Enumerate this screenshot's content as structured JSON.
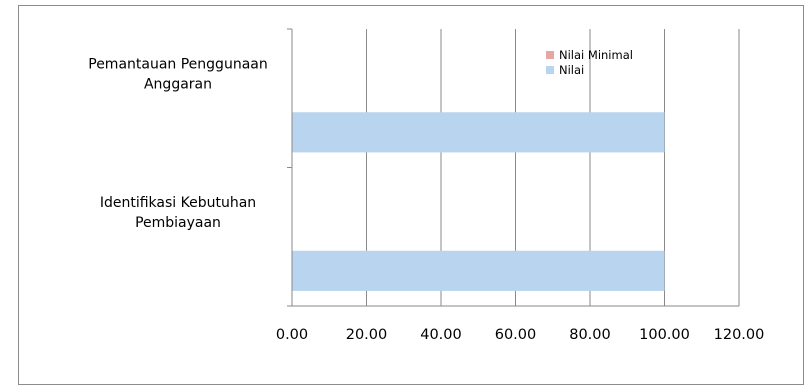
{
  "chart_data": {
    "type": "bar",
    "orientation": "horizontal",
    "categories": [
      "Identifikasi Kebutuhan Pembiayaan",
      "Pemantauan Penggunaan Anggaran"
    ],
    "category_lines": [
      [
        "Identifikasi Kebutuhan",
        "Pembiayaan"
      ],
      [
        "Pemantauan Penggunaan",
        "Anggaran"
      ]
    ],
    "series": [
      {
        "name": "Nilai Minimal",
        "color": "#e6a6a6",
        "values": [
          0,
          0
        ]
      },
      {
        "name": "Nilai",
        "color": "#b8d4ee",
        "values": [
          100,
          100
        ]
      }
    ],
    "xlim": [
      0,
      120
    ],
    "xticks": [
      0,
      20,
      40,
      60,
      80,
      100,
      120
    ],
    "xtick_labels": [
      "0.00",
      "20.00",
      "40.00",
      "60.00",
      "80.00",
      "100.00",
      "120.00"
    ],
    "grid": "vertical",
    "legend_position": "top-right inside plot",
    "title": "",
    "xlabel": "",
    "ylabel": ""
  }
}
